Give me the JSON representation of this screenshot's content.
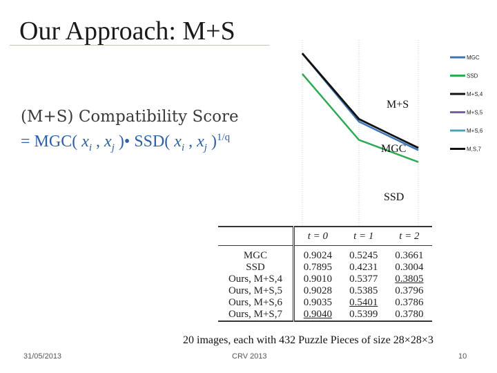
{
  "slide": {
    "title": "Our Approach: M+S",
    "formula_line1": "(M+S) Compatibility Score",
    "formula_line2": {
      "eq": "= MGC(",
      "x": "x",
      "i": "i",
      "comma": " , ",
      "j": "j",
      "close_dot": " )• SSD(",
      "close": " )",
      "exp": "1/q"
    },
    "caption": "20 images, each with 432 Puzzle Pieces of size 28×28×3",
    "footer": {
      "date": "31/05/2013",
      "conference": "CRV 2013",
      "page": "10"
    }
  },
  "chart_data": {
    "type": "line",
    "x": [
      0,
      1,
      2
    ],
    "series": [
      {
        "name": "MGC",
        "color": "#3b74b8",
        "values": [
          0.9024,
          0.5245,
          0.3661
        ]
      },
      {
        "name": "SSD",
        "color": "#2eaa55",
        "values": [
          0.7895,
          0.4231,
          0.3004
        ]
      },
      {
        "name": "M+S,4",
        "color": "#111111",
        "values": [
          0.901,
          0.5377,
          0.3805
        ]
      },
      {
        "name": "M+S,5",
        "color": "#7a5fa6",
        "values": [
          0.9028,
          0.5385,
          0.3796
        ]
      },
      {
        "name": "M+S,6",
        "color": "#4aa3b5",
        "values": [
          0.9035,
          0.5401,
          0.3786
        ]
      },
      {
        "name": "M,S,7",
        "color": "#111111",
        "values": [
          0.904,
          0.5399,
          0.378
        ]
      }
    ],
    "annotations": [
      "M+S",
      "MGC",
      "SSD"
    ],
    "legend_position": "right",
    "grid": "vertical-dotted"
  },
  "table": {
    "headers": [
      "t = 0",
      "t = 1",
      "t = 2"
    ],
    "rows": [
      {
        "method": "MGC",
        "v": [
          "0.9024",
          "0.5245",
          "0.3661"
        ],
        "style": [
          "",
          "",
          ""
        ]
      },
      {
        "method": "SSD",
        "v": [
          "0.7895",
          "0.4231",
          "0.3004"
        ],
        "style": [
          "",
          "",
          ""
        ]
      },
      {
        "method": "Ours, M+S,4",
        "v": [
          "0.9010",
          "0.5377",
          "0.3805"
        ],
        "style": [
          "",
          "b",
          "bu"
        ]
      },
      {
        "method": "Ours, M+S,5",
        "v": [
          "0.9028",
          "0.5385",
          "0.3796"
        ],
        "style": [
          "",
          "b",
          "b"
        ]
      },
      {
        "method": "Ours, M+S,6",
        "v": [
          "0.9035",
          "0.5401",
          "0.3786"
        ],
        "style": [
          "",
          "bu",
          "b"
        ]
      },
      {
        "method": "Ours, M+S,7",
        "v": [
          "0.9040",
          "0.5399",
          "0.3780"
        ],
        "style": [
          "bu",
          "b",
          "b"
        ]
      }
    ]
  }
}
